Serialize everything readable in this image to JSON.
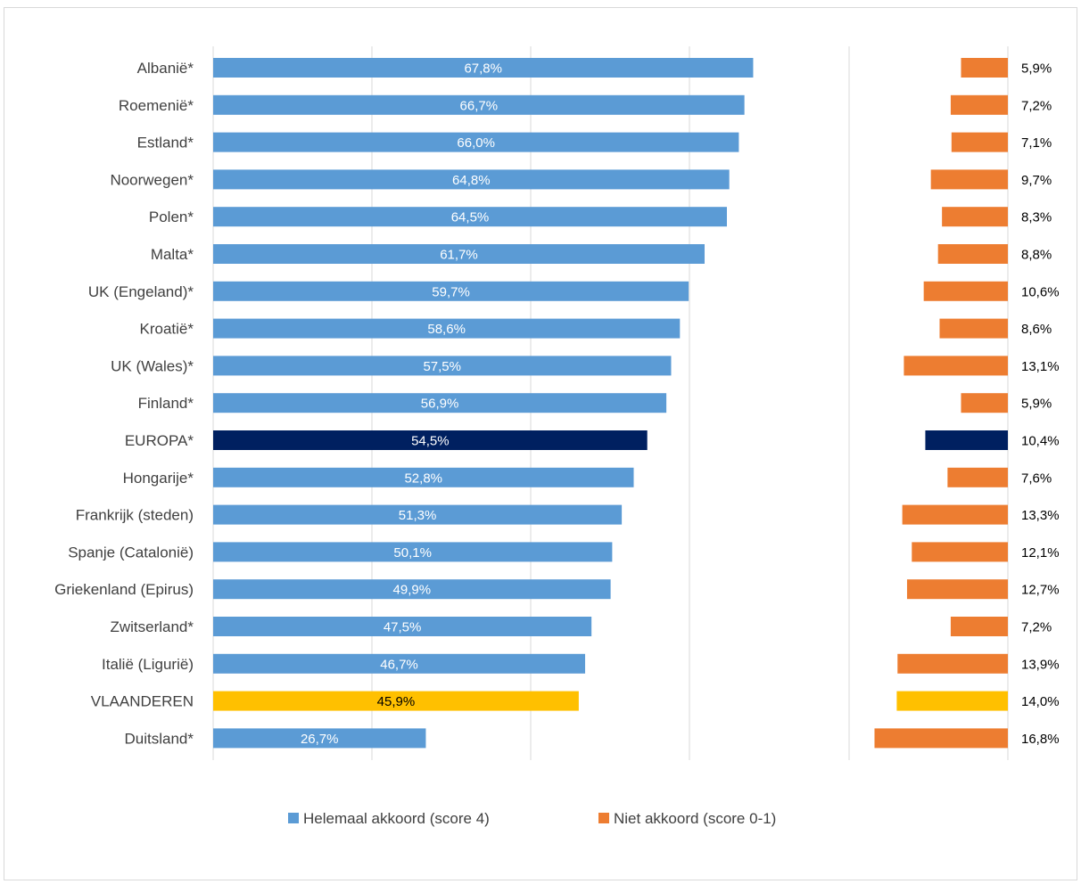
{
  "chart_data": {
    "type": "bar",
    "orientation": "horizontal",
    "categories": [
      "Albanië*",
      "Roemenië*",
      "Estland*",
      "Noorwegen*",
      "Polen*",
      "Malta*",
      "UK (Engeland)*",
      "Kroatië*",
      "UK (Wales)*",
      "Finland*",
      "EUROPA*",
      "Hongarije*",
      "Frankrijk (steden)",
      "Spanje (Catalonië)",
      "Griekenland (Epirus)",
      "Zwitserland*",
      "Italië (Ligurië)",
      "VLAANDEREN",
      "Duitsland*"
    ],
    "series": [
      {
        "name": "Helemaal akkoord (score 4)",
        "color": "#5b9bd5",
        "values": [
          67.8,
          66.7,
          66.0,
          64.8,
          64.5,
          61.7,
          59.7,
          58.6,
          57.5,
          56.9,
          54.5,
          52.8,
          51.3,
          50.1,
          49.9,
          47.5,
          46.7,
          45.9,
          26.7
        ],
        "labels": [
          "67,8%",
          "66,7%",
          "66,0%",
          "64,8%",
          "64,5%",
          "61,7%",
          "59,7%",
          "58,6%",
          "57,5%",
          "56,9%",
          "54,5%",
          "52,8%",
          "51,3%",
          "50,1%",
          "49,9%",
          "47,5%",
          "46,7%",
          "45,9%",
          "26,7%"
        ]
      },
      {
        "name": "Niet akkoord (score 0-1)",
        "color": "#ed7d31",
        "values": [
          5.9,
          7.2,
          7.1,
          9.7,
          8.3,
          8.8,
          10.6,
          8.6,
          13.1,
          5.9,
          10.4,
          7.6,
          13.3,
          12.1,
          12.7,
          7.2,
          13.9,
          14.0,
          16.8
        ],
        "labels": [
          "5,9%",
          "7,2%",
          "7,1%",
          "9,7%",
          "8,3%",
          "8,8%",
          "10,6%",
          "8,6%",
          "13,1%",
          "5,9%",
          "10,4%",
          "7,6%",
          "13,3%",
          "12,1%",
          "12,7%",
          "7,2%",
          "13,9%",
          "14,0%",
          "16,8%"
        ]
      }
    ],
    "highlights": {
      "EUROPA*": "#002060",
      "VLAANDEREN": "#ffc000"
    },
    "xlim": [
      0,
      100
    ],
    "grid": true,
    "legend_position": "bottom"
  }
}
